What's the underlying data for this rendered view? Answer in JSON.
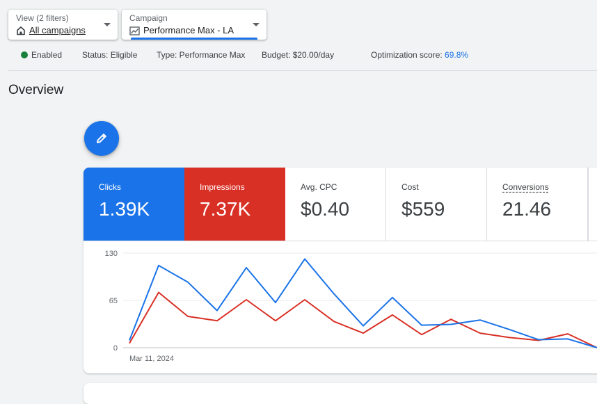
{
  "filters": {
    "view": {
      "label": "View (2 filters)",
      "value": "All campaigns",
      "icon": "home-icon"
    },
    "campaign": {
      "label": "Campaign",
      "value": "Performance Max - LA",
      "icon": "trend-icon"
    }
  },
  "status": {
    "enabled": "Enabled",
    "status": "Status: Eligible",
    "type": "Type: Performance Max",
    "budget": "Budget: $20.00/day",
    "optimization_label": "Optimization score:",
    "optimization_value": "69.8%"
  },
  "page_title": "Overview",
  "edit_icon": "pencil-icon",
  "metrics": [
    {
      "label": "Clicks",
      "value": "1.39K"
    },
    {
      "label": "Impressions",
      "value": "7.37K"
    },
    {
      "label": "Avg. CPC",
      "value": "$0.40"
    },
    {
      "label": "Cost",
      "value": "$559"
    },
    {
      "label": "Conversions",
      "value": "21.46"
    }
  ],
  "colors": {
    "primary": "#1a73e8",
    "clicks": "#1a73e8",
    "impressions": "#d93025",
    "enabled": "#188038"
  },
  "chart_data": {
    "type": "line",
    "y_ticks": [
      "130",
      "65",
      "0"
    ],
    "ylim": [
      0,
      130
    ],
    "x_label_first": "Mar 11, 2024",
    "grid": true,
    "series": [
      {
        "name": "Clicks",
        "color": "#1a73e8",
        "values": [
          10,
          113,
          90,
          51,
          110,
          62,
          122,
          74,
          30,
          69,
          31,
          32,
          38,
          25,
          11,
          12,
          0
        ]
      },
      {
        "name": "Impressions",
        "color": "#d93025",
        "values": [
          6,
          76,
          43,
          37,
          66,
          37,
          66,
          36,
          20,
          45,
          18,
          39,
          20,
          14,
          10,
          19,
          0
        ]
      }
    ]
  }
}
